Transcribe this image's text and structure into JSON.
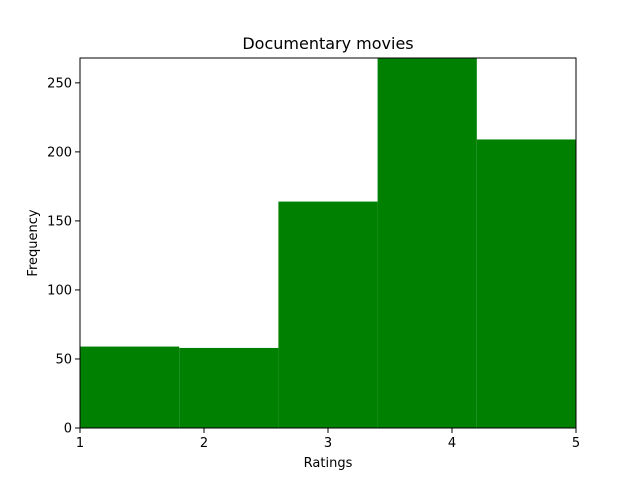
{
  "chart_data": {
    "type": "bar",
    "title": "Documentary movies",
    "xlabel": "Ratings",
    "ylabel": "Frequency",
    "bins": [
      {
        "x0": 1.0,
        "x1": 1.8,
        "value": 59
      },
      {
        "x0": 1.8,
        "x1": 2.6,
        "value": 58
      },
      {
        "x0": 2.6,
        "x1": 3.4,
        "value": 164
      },
      {
        "x0": 3.4,
        "x1": 4.2,
        "value": 268
      },
      {
        "x0": 4.2,
        "x1": 5.0,
        "value": 209
      }
    ],
    "xlim": [
      1,
      5
    ],
    "ylim": [
      0,
      268
    ],
    "xticks": [
      1,
      2,
      3,
      4,
      5
    ],
    "yticks": [
      0,
      50,
      100,
      150,
      200,
      250
    ],
    "bar_color": "#008000",
    "grid": false
  }
}
